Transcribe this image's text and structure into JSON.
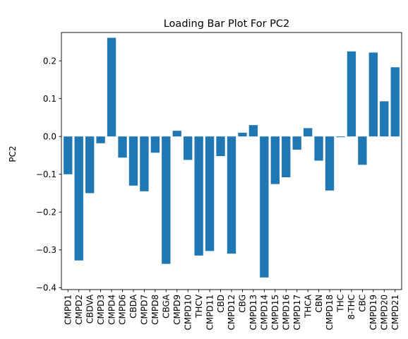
{
  "chart_data": {
    "type": "bar",
    "title": "Loading Bar Plot For PC2",
    "xlabel": "",
    "ylabel": "PC2",
    "ylim": [
      -0.405,
      0.275
    ],
    "yticks": [
      -0.4,
      -0.3,
      -0.2,
      -0.1,
      0.0,
      0.1,
      0.2
    ],
    "ytick_labels": [
      "−0.4",
      "−0.3",
      "−0.2",
      "−0.1",
      "0.0",
      "0.1",
      "0.2"
    ],
    "bar_color": "#1f77b4",
    "grid": false,
    "categories": [
      "CMPD1",
      "CMPD2",
      "CBDVA",
      "CMPD3",
      "CMPD4",
      "CMPD6",
      "CBDA",
      "CMPD7",
      "CMPD8",
      "CBGA",
      "CMPD9",
      "CMPD10",
      "THCV",
      "CMPD11",
      "CBD",
      "CMPD12",
      "CBG",
      "CMPD13",
      "CMPD14",
      "CMPD15",
      "CMPD16",
      "CMPD17",
      "THCA",
      "CBN",
      "CMPD18",
      "THC",
      "8-THC",
      "CBC",
      "CMPD19",
      "CMPD20",
      "CMPD21"
    ],
    "values": [
      -0.1,
      -0.328,
      -0.15,
      -0.018,
      0.261,
      -0.056,
      -0.13,
      -0.145,
      -0.043,
      -0.337,
      0.015,
      -0.062,
      -0.315,
      -0.303,
      -0.052,
      -0.31,
      0.01,
      0.03,
      -0.373,
      -0.126,
      -0.108,
      -0.035,
      0.022,
      -0.064,
      -0.143,
      -0.002,
      0.225,
      -0.075,
      0.222,
      0.093,
      0.183
    ]
  }
}
